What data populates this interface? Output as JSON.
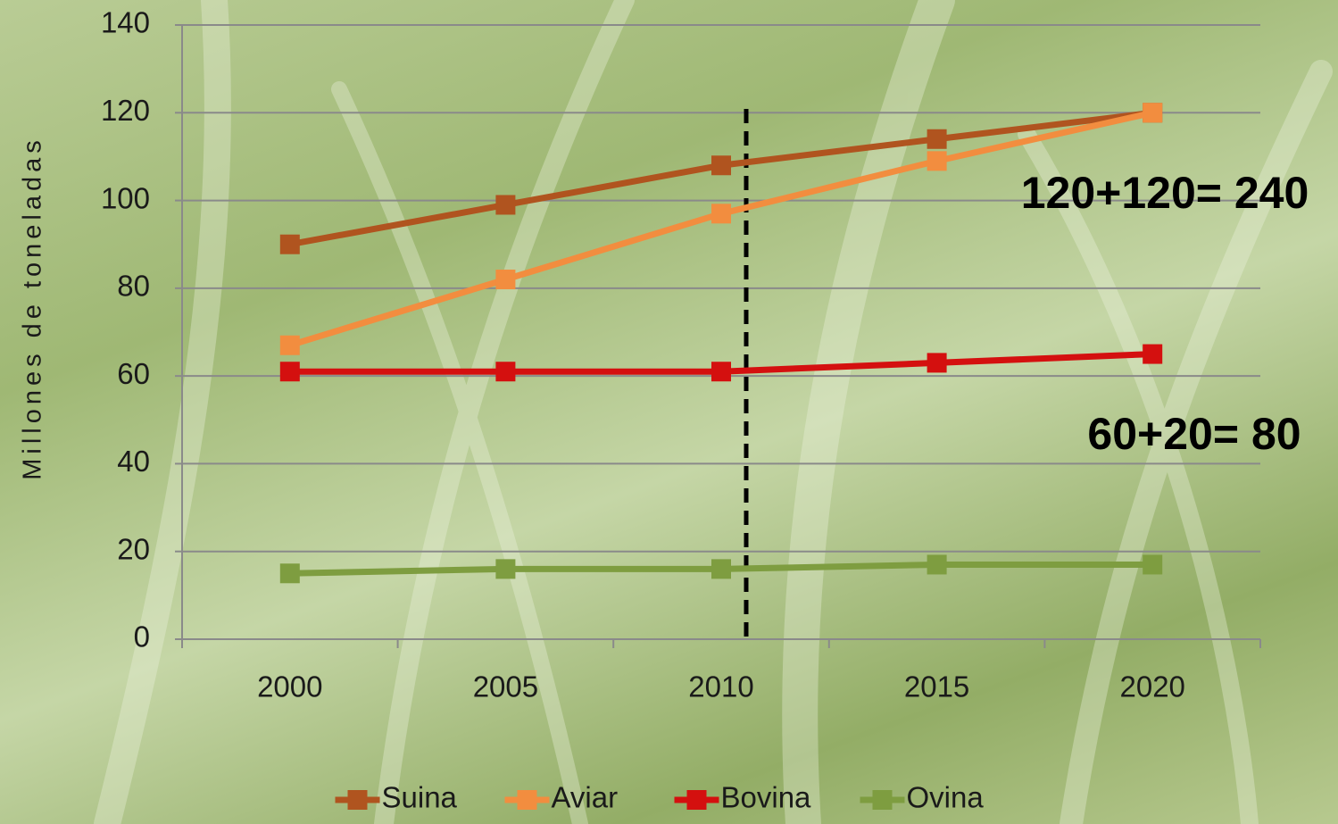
{
  "chart_data": {
    "type": "line",
    "y_label": "Millones de toneladas",
    "categories": [
      "2000",
      "2005",
      "2010",
      "2015",
      "2020"
    ],
    "series": [
      {
        "name": "Suina",
        "color": "#b0541f",
        "values": [
          90,
          99,
          108,
          114,
          120
        ]
      },
      {
        "name": "Aviar",
        "color": "#f28d3f",
        "values": [
          67,
          82,
          97,
          109,
          120
        ]
      },
      {
        "name": "Bovina",
        "color": "#d4100f",
        "values": [
          61,
          61,
          61,
          63,
          65
        ]
      },
      {
        "name": "Ovina",
        "color": "#7e9d40",
        "values": [
          15,
          16,
          16,
          17,
          17
        ]
      }
    ],
    "ylim": [
      0,
      140
    ],
    "yticks": [
      0,
      20,
      40,
      60,
      80,
      100,
      120,
      140
    ],
    "grid": true,
    "annotations": [
      "120+120= 240",
      "60+20= 80"
    ],
    "legend": "bottom"
  }
}
